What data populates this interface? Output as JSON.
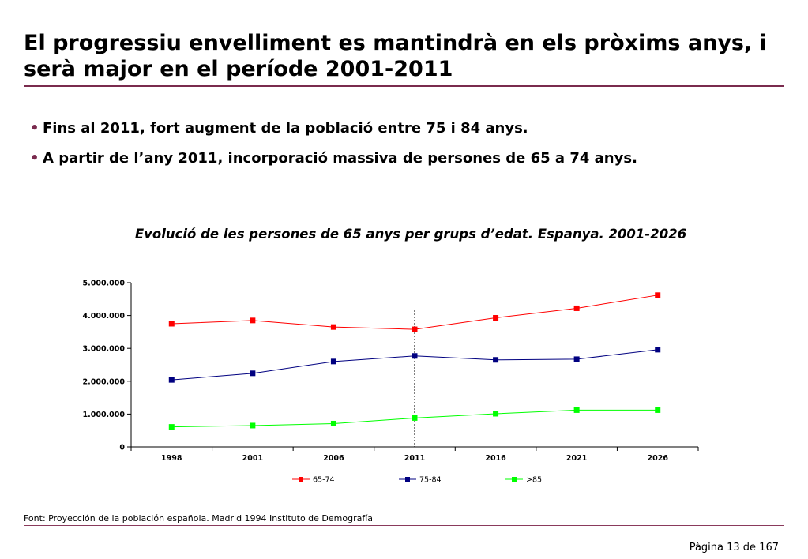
{
  "title": "El progressiu envelliment es mantindrà en els pròxims anys, i serà major en el període 2001-2011",
  "bullets": [
    "Fins al 2011, fort augment de la població entre 75 i 84 anys.",
    "A partir de l’any 2011, incorporació massiva de persones de 65 a 74 anys."
  ],
  "chart_title": "Evolució de les persones de 65 anys per grups d’edat. Espanya. 2001-2026",
  "chart_data": {
    "type": "line",
    "categories": [
      "1998",
      "2001",
      "2006",
      "2011",
      "2016",
      "2021",
      "2026"
    ],
    "series": [
      {
        "name": "65-74",
        "color": "#ff0000",
        "values": [
          3750000,
          3850000,
          3650000,
          3580000,
          3930000,
          4220000,
          4620000
        ]
      },
      {
        "name": "75-84",
        "color": "#000080",
        "values": [
          2040000,
          2240000,
          2600000,
          2770000,
          2650000,
          2670000,
          2960000
        ]
      },
      {
        "name": ">85",
        "color": "#00ff00",
        "values": [
          610000,
          650000,
          710000,
          880000,
          1010000,
          1120000,
          1120000
        ]
      }
    ],
    "ylim": [
      0,
      5000000
    ],
    "yticks": [
      0,
      1000000,
      2000000,
      3000000,
      4000000,
      5000000
    ],
    "ytick_labels": [
      "0",
      "1.000.000",
      "2.000.000",
      "3.000.000",
      "4.000.000",
      "5.000.000"
    ],
    "reference_line_category": "2011",
    "legend": "bottom",
    "grid": false
  },
  "source": "Font: Proyección de la población española. Madrid 1994 Instituto de Demografía",
  "page_label": "Pàgina 13 de 167"
}
